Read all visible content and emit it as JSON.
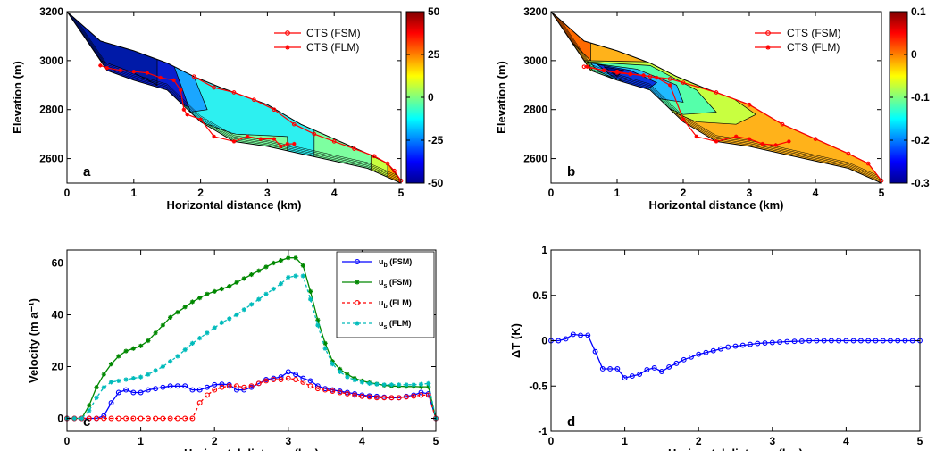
{
  "chart_data": [
    {
      "id": "a",
      "type": "contour",
      "panel_label": "a",
      "xlabel": "Horizontal distance (km)",
      "ylabel": "Elevation (m)",
      "xlim": [
        0,
        5
      ],
      "ylim": [
        2500,
        3200
      ],
      "xticks": [
        "0",
        "1",
        "2",
        "3",
        "4",
        "5"
      ],
      "yticks": [
        "2600",
        "2800",
        "3000",
        "3200"
      ],
      "colorbar": {
        "ticks": [
          "50",
          "25",
          "0",
          "-25",
          "-50"
        ],
        "range": [
          -50,
          50
        ],
        "colormap": "jet"
      },
      "legend": [
        {
          "name": "CTS (FSM)",
          "color": "#ff0000",
          "marker": "circle"
        },
        {
          "name": "CTS (FLM)",
          "color": "#ff0000",
          "marker": "star"
        }
      ],
      "surface": [
        [
          0,
          3200
        ],
        [
          0.5,
          3080
        ],
        [
          1,
          3040
        ],
        [
          1.5,
          2990
        ],
        [
          1.9,
          2935
        ],
        [
          2.3,
          2890
        ],
        [
          3,
          2820
        ],
        [
          3.5,
          2740
        ],
        [
          4,
          2680
        ],
        [
          4.5,
          2620
        ],
        [
          4.8,
          2580
        ],
        [
          5,
          2510
        ]
      ],
      "bed": [
        [
          0,
          3200
        ],
        [
          0.2,
          3120
        ],
        [
          0.6,
          2960
        ],
        [
          1,
          2920
        ],
        [
          1.5,
          2880
        ],
        [
          2,
          2750
        ],
        [
          2.5,
          2670
        ],
        [
          3,
          2650
        ],
        [
          3.5,
          2620
        ],
        [
          4,
          2590
        ],
        [
          4.5,
          2560
        ],
        [
          5,
          2500
        ]
      ],
      "cts_fsm": [
        [
          1.9,
          2935
        ],
        [
          2.2,
          2890
        ],
        [
          2.5,
          2870
        ],
        [
          2.8,
          2840
        ],
        [
          3.1,
          2800
        ],
        [
          3.4,
          2740
        ],
        [
          3.7,
          2700
        ],
        [
          4,
          2670
        ],
        [
          4.3,
          2640
        ],
        [
          4.6,
          2610
        ],
        [
          4.8,
          2580
        ],
        [
          4.9,
          2550
        ],
        [
          5,
          2510
        ]
      ],
      "cts_flm": [
        [
          0.5,
          2980
        ],
        [
          0.6,
          2970
        ],
        [
          0.8,
          2960
        ],
        [
          1,
          2955
        ],
        [
          1.2,
          2950
        ],
        [
          1.4,
          2930
        ],
        [
          1.6,
          2920
        ],
        [
          1.7,
          2880
        ],
        [
          1.75,
          2800
        ],
        [
          1.8,
          2780
        ],
        [
          2,
          2760
        ],
        [
          2.2,
          2690
        ],
        [
          2.5,
          2670
        ],
        [
          2.7,
          2690
        ],
        [
          2.9,
          2680
        ],
        [
          3.1,
          2680
        ],
        [
          3.2,
          2650
        ],
        [
          3.3,
          2660
        ],
        [
          3.4,
          2660
        ]
      ]
    },
    {
      "id": "b",
      "type": "contour",
      "panel_label": "b",
      "xlabel": "Horizontal distance (km)",
      "ylabel": "Elevation (m)",
      "xlim": [
        0,
        5
      ],
      "ylim": [
        2500,
        3200
      ],
      "xticks": [
        "0",
        "1",
        "2",
        "3",
        "4",
        "5"
      ],
      "yticks": [
        "2600",
        "2800",
        "3000",
        "3200"
      ],
      "colorbar": {
        "ticks": [
          "0.1",
          "0",
          "-0.1",
          "-0.2",
          "-0.3"
        ],
        "range": [
          -0.3,
          0.1
        ],
        "colormap": "jet"
      },
      "legend": [
        {
          "name": "CTS (FSM)",
          "color": "#ff0000",
          "marker": "circle"
        },
        {
          "name": "CTS (FLM)",
          "color": "#ff0000",
          "marker": "star"
        }
      ],
      "surface": [
        [
          0,
          3200
        ],
        [
          0.5,
          3080
        ],
        [
          1,
          3040
        ],
        [
          1.5,
          2990
        ],
        [
          1.9,
          2935
        ],
        [
          2.3,
          2890
        ],
        [
          3,
          2820
        ],
        [
          3.5,
          2740
        ],
        [
          4,
          2680
        ],
        [
          4.5,
          2620
        ],
        [
          4.8,
          2580
        ],
        [
          5,
          2510
        ]
      ],
      "bed": [
        [
          0,
          3200
        ],
        [
          0.2,
          3120
        ],
        [
          0.6,
          2960
        ],
        [
          1,
          2920
        ],
        [
          1.5,
          2880
        ],
        [
          2,
          2750
        ],
        [
          2.5,
          2670
        ],
        [
          3,
          2650
        ],
        [
          3.5,
          2620
        ],
        [
          4,
          2590
        ],
        [
          4.5,
          2560
        ],
        [
          5,
          2500
        ]
      ],
      "cts_fsm": [
        [
          0.5,
          2975
        ],
        [
          0.8,
          2960
        ],
        [
          1,
          2955
        ],
        [
          1.2,
          2945
        ],
        [
          1.5,
          2935
        ],
        [
          1.8,
          2925
        ],
        [
          2,
          2910
        ],
        [
          2.5,
          2870
        ],
        [
          3,
          2820
        ],
        [
          3.5,
          2740
        ],
        [
          4,
          2680
        ],
        [
          4.5,
          2620
        ],
        [
          4.8,
          2580
        ],
        [
          5,
          2510
        ]
      ],
      "cts_flm": [
        [
          0.55,
          2975
        ],
        [
          0.8,
          2960
        ],
        [
          1,
          2950
        ],
        [
          1.2,
          2945
        ],
        [
          1.4,
          2940
        ],
        [
          1.6,
          2930
        ],
        [
          1.8,
          2900
        ],
        [
          2,
          2760
        ],
        [
          2.2,
          2690
        ],
        [
          2.5,
          2670
        ],
        [
          2.8,
          2690
        ],
        [
          3,
          2680
        ],
        [
          3.2,
          2660
        ],
        [
          3.4,
          2655
        ],
        [
          3.6,
          2670
        ]
      ]
    },
    {
      "id": "c",
      "type": "line",
      "panel_label": "c",
      "xlabel": "Horizontal distance (km)",
      "ylabel": "Velocity (m a⁻¹)",
      "xlim": [
        0,
        5
      ],
      "ylim": [
        -5,
        65
      ],
      "xticks": [
        "0",
        "1",
        "2",
        "3",
        "4",
        "5"
      ],
      "yticks": [
        "0",
        "20",
        "40",
        "60"
      ],
      "x": [
        0,
        0.1,
        0.2,
        0.3,
        0.4,
        0.5,
        0.6,
        0.7,
        0.8,
        0.9,
        1,
        1.1,
        1.2,
        1.3,
        1.4,
        1.5,
        1.6,
        1.7,
        1.8,
        1.9,
        2,
        2.1,
        2.2,
        2.3,
        2.4,
        2.5,
        2.6,
        2.7,
        2.8,
        2.9,
        3,
        3.1,
        3.2,
        3.3,
        3.4,
        3.5,
        3.6,
        3.7,
        3.8,
        3.9,
        4,
        4.1,
        4.2,
        4.3,
        4.4,
        4.5,
        4.6,
        4.7,
        4.8,
        4.9,
        5
      ],
      "series": [
        {
          "name": "u_b (FSM)",
          "label_main": "u",
          "label_sub": "b",
          "label_tail": "(FSM)",
          "color": "#0000ff",
          "marker": "circle",
          "dash": "",
          "values": [
            0,
            0,
            0,
            0,
            0,
            1,
            6,
            10,
            11,
            10,
            10,
            11,
            11.5,
            12,
            12.5,
            12.5,
            12.5,
            11,
            11,
            12,
            13,
            13.2,
            13,
            11,
            11,
            12,
            13.5,
            15,
            15.5,
            16,
            18,
            17,
            15.5,
            14.5,
            12.5,
            11.5,
            11,
            10.5,
            10,
            9.5,
            9,
            8.7,
            8.5,
            8.2,
            8,
            8,
            8.5,
            9,
            10,
            9.5,
            0
          ]
        },
        {
          "name": "u_s (FSM)",
          "label_main": "u",
          "label_sub": "s",
          "label_tail": "(FSM)",
          "color": "#008800",
          "marker": "star",
          "dash": "",
          "values": [
            0,
            0,
            0,
            5,
            12,
            17,
            21,
            24,
            26,
            27,
            28,
            30,
            33,
            36,
            39,
            41,
            43,
            45,
            46.5,
            48,
            49,
            50,
            51,
            52.5,
            54,
            55.5,
            57,
            58.5,
            60,
            61,
            62,
            62,
            59,
            49,
            38,
            29,
            22,
            19,
            17,
            15.5,
            14.5,
            13.8,
            13.3,
            12.8,
            12.5,
            12.4,
            12.3,
            12.3,
            12.2,
            12.2,
            0
          ]
        },
        {
          "name": "u_b (FLM)",
          "label_main": "u",
          "label_sub": "b",
          "label_tail": "(FLM)",
          "color": "#ff0000",
          "marker": "circle",
          "dash": "3,3",
          "values": [
            0,
            0,
            0,
            0,
            0,
            0,
            0,
            0,
            0,
            0,
            0,
            0,
            0,
            0,
            0,
            0,
            0,
            0,
            6,
            9,
            11,
            12,
            12.5,
            12.5,
            12,
            12.5,
            13.5,
            14.5,
            15,
            15,
            15.5,
            15,
            14,
            12.5,
            11.5,
            11,
            10.5,
            10,
            9.5,
            9,
            8.5,
            8.3,
            8,
            8,
            8,
            8,
            8.3,
            8.6,
            9,
            9,
            0
          ]
        },
        {
          "name": "u_s (FLM)",
          "label_main": "u",
          "label_sub": "s",
          "label_tail": "(FLM)",
          "color": "#00bbbb",
          "marker": "star",
          "dash": "3,3",
          "values": [
            0,
            0,
            0,
            3,
            8,
            12,
            14,
            14.5,
            15,
            15.5,
            16,
            17,
            18.5,
            20,
            22,
            24,
            26.5,
            29,
            31,
            33,
            35,
            37,
            38.5,
            40,
            42,
            44,
            46,
            48,
            50,
            52,
            54.5,
            55,
            55,
            46,
            36,
            27,
            21,
            18,
            16,
            14.8,
            14,
            13.5,
            13.2,
            13,
            13,
            13,
            13,
            13,
            13.2,
            13.5,
            0
          ]
        }
      ]
    },
    {
      "id": "d",
      "type": "line",
      "panel_label": "d",
      "xlabel": "Horizontal distance (km)",
      "ylabel": "ΔT (K)",
      "xlim": [
        0,
        5
      ],
      "ylim": [
        -1,
        1
      ],
      "xticks": [
        "0",
        "1",
        "2",
        "3",
        "4",
        "5"
      ],
      "yticks": [
        "-1",
        "-0.5",
        "0",
        "0.5",
        "1"
      ],
      "x": [
        0,
        0.1,
        0.2,
        0.3,
        0.4,
        0.5,
        0.6,
        0.7,
        0.8,
        0.9,
        1,
        1.1,
        1.2,
        1.3,
        1.4,
        1.5,
        1.6,
        1.7,
        1.8,
        1.9,
        2,
        2.1,
        2.2,
        2.3,
        2.4,
        2.5,
        2.6,
        2.7,
        2.8,
        2.9,
        3,
        3.1,
        3.2,
        3.3,
        3.4,
        3.5,
        3.6,
        3.7,
        3.8,
        3.9,
        4,
        4.1,
        4.2,
        4.3,
        4.4,
        4.5,
        4.6,
        4.7,
        4.8,
        4.9,
        5
      ],
      "series": [
        {
          "name": "ΔT",
          "color": "#0000ff",
          "marker": "circle",
          "values": [
            0,
            0,
            0.02,
            0.07,
            0.06,
            0.06,
            -0.12,
            -0.31,
            -0.31,
            -0.31,
            -0.41,
            -0.39,
            -0.37,
            -0.32,
            -0.3,
            -0.34,
            -0.29,
            -0.25,
            -0.21,
            -0.18,
            -0.15,
            -0.13,
            -0.11,
            -0.09,
            -0.07,
            -0.06,
            -0.05,
            -0.04,
            -0.03,
            -0.025,
            -0.02,
            -0.015,
            -0.01,
            -0.007,
            -0.005,
            0,
            0,
            0,
            0,
            0,
            0,
            0,
            0,
            0,
            0,
            0,
            0,
            0,
            0,
            0,
            0
          ]
        }
      ]
    }
  ]
}
